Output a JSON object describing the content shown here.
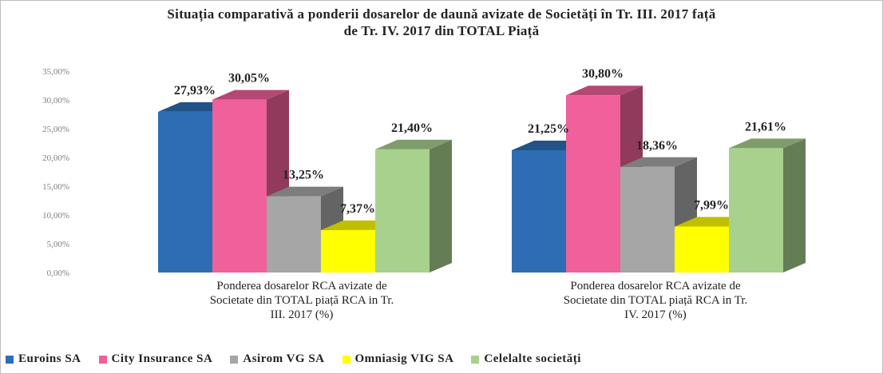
{
  "chart_data": {
    "type": "bar3d",
    "title": "Situația comparativă a ponderii dosarelor de daună avizate de Societăți în Tr. III. 2017 față de Tr. IV. 2017 din TOTAL Piață",
    "categories": [
      "Ponderea dosarelor RCA avizate de Societate din TOTAL piață RCA in Tr. III. 2017 (%)",
      "Ponderea dosarelor RCA avizate de Societate din TOTAL piață RCA in Tr. IV. 2017 (%)"
    ],
    "series": [
      {
        "name": "Euroins SA",
        "color": "#2e6db4",
        "values": [
          27.93,
          21.25
        ],
        "value_labels": [
          "27,93%",
          "21,25%"
        ]
      },
      {
        "name": "City Insurance SA",
        "color": "#f0609a",
        "values": [
          30.05,
          30.8
        ],
        "value_labels": [
          "30,05%",
          "30,80%"
        ]
      },
      {
        "name": "Asirom VG SA",
        "color": "#a6a6a6",
        "values": [
          13.25,
          18.36
        ],
        "value_labels": [
          "13,25%",
          "18,36%"
        ]
      },
      {
        "name": "Omniasig VIG SA",
        "color": "#ffff00",
        "values": [
          7.37,
          7.99
        ],
        "value_labels": [
          "7,37%",
          "7,99%"
        ]
      },
      {
        "name": "Celelalte societăți",
        "color": "#a9d18e",
        "values": [
          21.4,
          21.61
        ],
        "value_labels": [
          "21,40%",
          "21,61%"
        ]
      }
    ],
    "ylim": [
      0,
      35
    ],
    "yticks": [
      {
        "value": 0,
        "label": "0,00%"
      },
      {
        "value": 5,
        "label": "5,00%"
      },
      {
        "value": 10,
        "label": "10,00%"
      },
      {
        "value": 15,
        "label": "15,00%"
      },
      {
        "value": 20,
        "label": "20,00%"
      },
      {
        "value": 25,
        "label": "25,00%"
      },
      {
        "value": 30,
        "label": "30,00%"
      },
      {
        "value": 35,
        "label": "35,00%"
      }
    ],
    "grid": false,
    "legend": "bottom"
  }
}
